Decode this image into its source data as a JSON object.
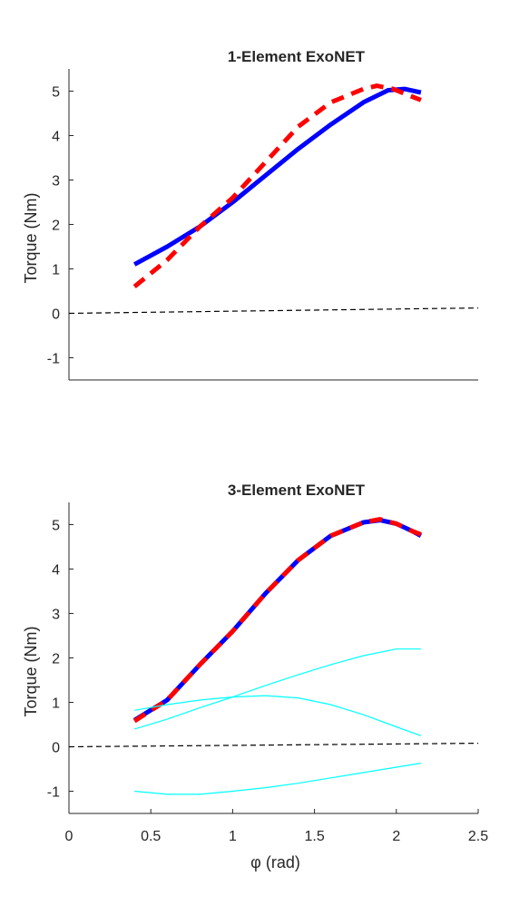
{
  "chart_data": [
    {
      "type": "line",
      "title": "1-Element ExoNET",
      "ylabel": "Torque (Nm)",
      "xlabel": "",
      "xlim": [
        0,
        2.5
      ],
      "ylim": [
        -1.5,
        5.5
      ],
      "yticks": [
        "-1",
        "0",
        "1",
        "2",
        "3",
        "4",
        "5"
      ],
      "xticks": [],
      "grid": false,
      "series": [
        {
          "style": "solid",
          "color": "#0000ff",
          "width": "thick",
          "x": [
            0.4,
            0.6,
            0.8,
            1.0,
            1.2,
            1.4,
            1.6,
            1.8,
            1.95,
            2.05,
            2.15
          ],
          "y": [
            1.1,
            1.5,
            1.95,
            2.5,
            3.1,
            3.7,
            4.25,
            4.75,
            5.02,
            5.05,
            4.97
          ]
        },
        {
          "style": "dashed",
          "color": "#ff0000",
          "width": "thick",
          "x": [
            0.4,
            0.6,
            0.8,
            1.0,
            1.2,
            1.4,
            1.6,
            1.8,
            1.88,
            1.98,
            2.08,
            2.15
          ],
          "y": [
            0.6,
            1.2,
            1.95,
            2.6,
            3.4,
            4.2,
            4.75,
            5.05,
            5.12,
            5.05,
            4.9,
            4.8
          ]
        },
        {
          "style": "dashed",
          "color": "#000000",
          "width": "thin",
          "x": [
            0,
            2.5
          ],
          "y": [
            0.0,
            0.12
          ]
        }
      ]
    },
    {
      "type": "line",
      "title": "3-Element ExoNET",
      "ylabel": "Torque (Nm)",
      "xlabel": "φ (rad)",
      "xlim": [
        0,
        2.5
      ],
      "ylim": [
        -1.5,
        5.5
      ],
      "yticks": [
        "-1",
        "0",
        "1",
        "2",
        "3",
        "4",
        "5"
      ],
      "xticks": [
        "0",
        "0.5",
        "1",
        "1.5",
        "2",
        "2.5"
      ],
      "grid": false,
      "series": [
        {
          "style": "solid",
          "color": "#0000ff",
          "width": "thick",
          "x": [
            0.4,
            0.6,
            0.8,
            1.0,
            1.2,
            1.4,
            1.6,
            1.8,
            1.9,
            2.0,
            2.1,
            2.15
          ],
          "y": [
            0.6,
            1.05,
            1.85,
            2.6,
            3.45,
            4.2,
            4.75,
            5.05,
            5.1,
            5.02,
            4.85,
            4.75
          ]
        },
        {
          "style": "dashed",
          "color": "#ff0000",
          "width": "thick",
          "x": [
            0.4,
            0.6,
            0.8,
            1.0,
            1.2,
            1.4,
            1.6,
            1.8,
            1.9,
            2.0,
            2.1,
            2.15
          ],
          "y": [
            0.58,
            1.05,
            1.85,
            2.6,
            3.45,
            4.2,
            4.75,
            5.05,
            5.12,
            5.02,
            4.85,
            4.78
          ]
        },
        {
          "style": "solid",
          "color": "#00ffff",
          "width": "thin",
          "x": [
            0.4,
            0.6,
            0.8,
            1.0,
            1.2,
            1.4,
            1.6,
            1.8,
            2.0,
            2.15
          ],
          "y": [
            0.4,
            0.62,
            0.88,
            1.12,
            1.38,
            1.62,
            1.85,
            2.05,
            2.2,
            2.2
          ]
        },
        {
          "style": "solid",
          "color": "#00ffff",
          "width": "thin",
          "x": [
            0.4,
            0.6,
            0.8,
            1.0,
            1.2,
            1.4,
            1.6,
            1.8,
            2.0,
            2.15
          ],
          "y": [
            0.82,
            0.95,
            1.05,
            1.12,
            1.15,
            1.1,
            0.95,
            0.72,
            0.45,
            0.25
          ]
        },
        {
          "style": "solid",
          "color": "#00ffff",
          "width": "thin",
          "x": [
            0.4,
            0.6,
            0.8,
            1.0,
            1.2,
            1.4,
            1.6,
            1.8,
            2.0,
            2.15
          ],
          "y": [
            -1.0,
            -1.07,
            -1.07,
            -1.0,
            -0.92,
            -0.82,
            -0.7,
            -0.58,
            -0.46,
            -0.37
          ]
        },
        {
          "style": "dashed",
          "color": "#000000",
          "width": "thin",
          "x": [
            0,
            2.5
          ],
          "y": [
            0.0,
            0.08
          ]
        }
      ]
    }
  ]
}
